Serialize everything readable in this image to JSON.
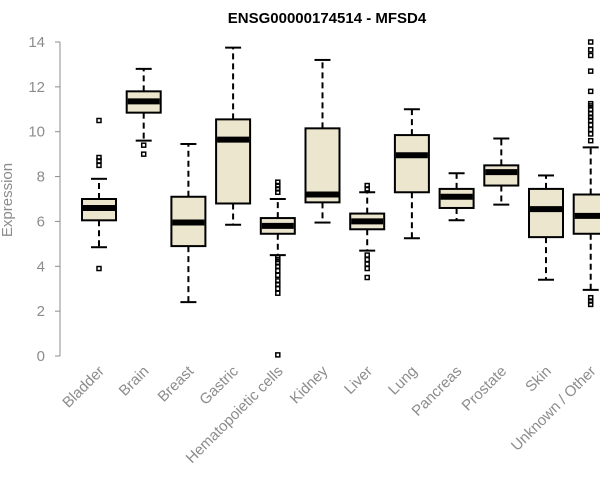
{
  "chart_data": {
    "type": "boxplot",
    "title": "ENSG00000174514 - MFSD4",
    "ylabel": "Expression",
    "xlabel": "",
    "ylim": [
      0,
      14
    ],
    "yticks": [
      0,
      2,
      4,
      6,
      8,
      10,
      12,
      14
    ],
    "box_color": "#ede6cf",
    "categories": [
      "Bladder",
      "Brain",
      "Breast",
      "Gastric",
      "Hematopoietic cells",
      "Kidney",
      "Liver",
      "Lung",
      "Pancreas",
      "Prostate",
      "Skin",
      "Unknown / Other"
    ],
    "boxes": [
      {
        "whisker_low": 4.85,
        "q1": 6.05,
        "median": 6.6,
        "q3": 7.0,
        "whisker_high": 7.9,
        "outliers": [
          3.9,
          8.5,
          8.7,
          8.85,
          10.5
        ]
      },
      {
        "whisker_low": 9.6,
        "q1": 10.85,
        "median": 11.35,
        "q3": 11.8,
        "whisker_high": 12.8,
        "outliers": [
          9.0,
          9.4
        ]
      },
      {
        "whisker_low": 2.4,
        "q1": 4.9,
        "median": 5.95,
        "q3": 7.1,
        "whisker_high": 9.45,
        "outliers": []
      },
      {
        "whisker_low": 5.85,
        "q1": 6.8,
        "median": 9.65,
        "q3": 10.55,
        "whisker_high": 13.75,
        "outliers": []
      },
      {
        "whisker_low": 4.5,
        "q1": 5.45,
        "median": 5.8,
        "q3": 6.15,
        "whisker_high": 7.0,
        "outliers": [
          0.05,
          2.8,
          3.0,
          3.2,
          3.35,
          3.6,
          3.8,
          4.0,
          4.15,
          4.3,
          4.4,
          7.3,
          7.45,
          7.6,
          7.75
        ]
      },
      {
        "whisker_low": 5.95,
        "q1": 6.85,
        "median": 7.2,
        "q3": 10.15,
        "whisker_high": 13.2,
        "outliers": []
      },
      {
        "whisker_low": 4.7,
        "q1": 5.65,
        "median": 6.0,
        "q3": 6.35,
        "whisker_high": 7.3,
        "outliers": [
          3.5,
          3.9,
          4.1,
          4.3,
          4.5,
          7.45,
          7.6
        ]
      },
      {
        "whisker_low": 5.25,
        "q1": 7.3,
        "median": 8.95,
        "q3": 9.85,
        "whisker_high": 11.0,
        "outliers": []
      },
      {
        "whisker_low": 6.05,
        "q1": 6.6,
        "median": 7.1,
        "q3": 7.45,
        "whisker_high": 8.15,
        "outliers": []
      },
      {
        "whisker_low": 6.75,
        "q1": 7.6,
        "median": 8.2,
        "q3": 8.5,
        "whisker_high": 9.7,
        "outliers": []
      },
      {
        "whisker_low": 3.4,
        "q1": 5.3,
        "median": 6.55,
        "q3": 7.45,
        "whisker_high": 8.05,
        "outliers": []
      },
      {
        "whisker_low": 2.95,
        "q1": 5.45,
        "median": 6.25,
        "q3": 7.2,
        "whisker_high": 9.3,
        "outliers": [
          2.3,
          2.45,
          2.6,
          9.6,
          9.9,
          10.1,
          10.3,
          10.5,
          10.65,
          10.8,
          11.0,
          11.15,
          11.25,
          11.8,
          12.7,
          13.4,
          13.65,
          14.0
        ]
      }
    ]
  }
}
